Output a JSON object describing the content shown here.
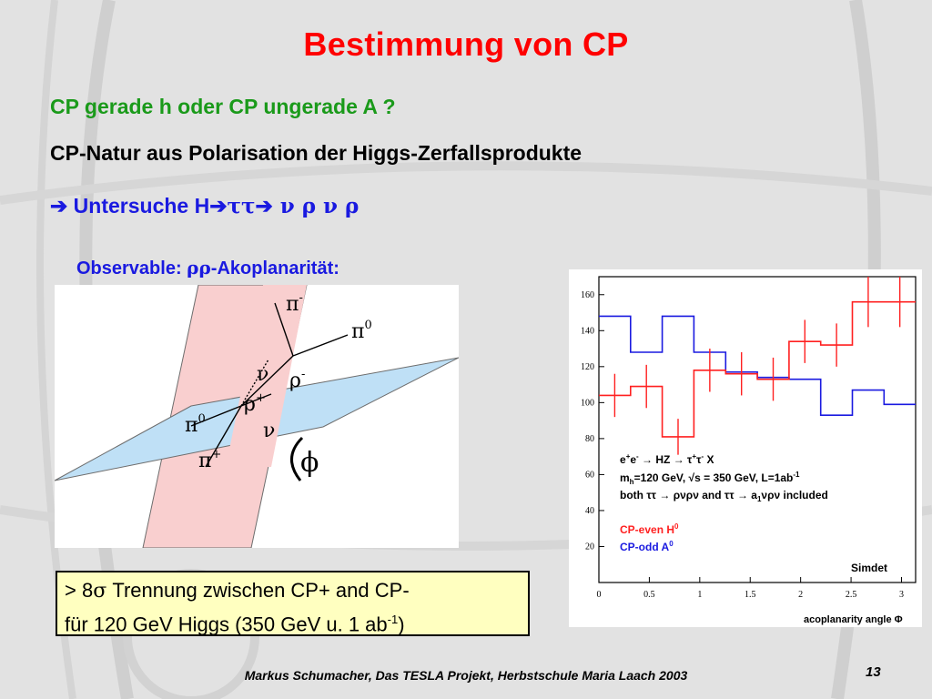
{
  "slide": {
    "title": "Bestimmung von CP",
    "line1": "CP gerade h oder CP ungerade A ?",
    "line2": "CP-Natur aus Polarisation der Higgs-Zerfallsprodukte",
    "line3_prefix": "➔ Untersuche H",
    "line3_arrow": "➔",
    "line3_tautau": "ττ",
    "line3_suffix": " ν ρ ν ρ",
    "observable_label": "Observable: ",
    "observable_rho": "ρρ",
    "observable_suffix": "-Akoplanarität:",
    "box_line1_prefix": "> 8",
    "box_sigma": "σ",
    "box_line1_suffix": " Trennung zwischen CP+ and CP-",
    "box_line2_prefix": "für 120 GeV Higgs (350 GeV u. 1 ab",
    "box_exp": "-1",
    "box_line2_suffix": ")",
    "footer": "Markus Schumacher, Das TESLA Projekt, Herbstschule Maria Laach 2003",
    "page_number": "13"
  },
  "diagram": {
    "labels": {
      "pi_minus": "π",
      "pi_minus_sup": "-",
      "pi0_top": "π",
      "pi0_top_sup": "0",
      "rho_minus": "ρ",
      "rho_minus_sup": "-",
      "rho_plus": "ρ",
      "rho_plus_sup": "+",
      "nu_left": "ν",
      "nu_right": "ν",
      "pi0_left": "π",
      "pi0_left_sup": "0",
      "pi_plus": "π",
      "pi_plus_sup": "+",
      "phi": "ϕ"
    },
    "colors": {
      "pink_plane": "#f9cfcf",
      "blue_plane": "#bfe0f6"
    }
  },
  "chart_data": {
    "type": "step",
    "xlabel": "acoplanarity angle Φ",
    "ylabel": "",
    "xlim": [
      0,
      3.14
    ],
    "ylim": [
      0,
      170
    ],
    "x_ticks": [
      "0",
      "0.5",
      "1",
      "1.5",
      "2",
      "2.5",
      "3"
    ],
    "y_ticks": [
      "20",
      "40",
      "60",
      "80",
      "100",
      "120",
      "140",
      "160"
    ],
    "bin_edges": [
      0,
      0.314,
      0.628,
      0.942,
      1.257,
      1.571,
      1.885,
      2.199,
      2.513,
      2.827,
      3.14
    ],
    "series": [
      {
        "name": "CP-even H",
        "name_sup": "0",
        "color": "#ff2020",
        "values": [
          104,
          109,
          81,
          118,
          116,
          113,
          134,
          132,
          156,
          156
        ],
        "errors": [
          12,
          12,
          10,
          12,
          12,
          12,
          12,
          12,
          14,
          14
        ]
      },
      {
        "name": "CP-odd A",
        "name_sup": "0",
        "color": "#1a1ae0",
        "values": [
          148,
          128,
          148,
          128,
          117,
          114,
          113,
          93,
          107,
          99
        ]
      }
    ],
    "annotation": {
      "line1_parts": [
        "e",
        "+",
        "e",
        "-",
        " → HZ → τ",
        "+",
        "τ",
        "-",
        " X"
      ],
      "line2_a": "m",
      "line2_sub": "h",
      "line2_b": "=120 GeV, √s = 350 GeV, L=1ab",
      "line2_sup": "-1",
      "line3_a": "both ττ → ρνρν and ττ → a",
      "line3_sub": "1",
      "line3_b": "νρν included",
      "tag": "Simdet"
    }
  }
}
